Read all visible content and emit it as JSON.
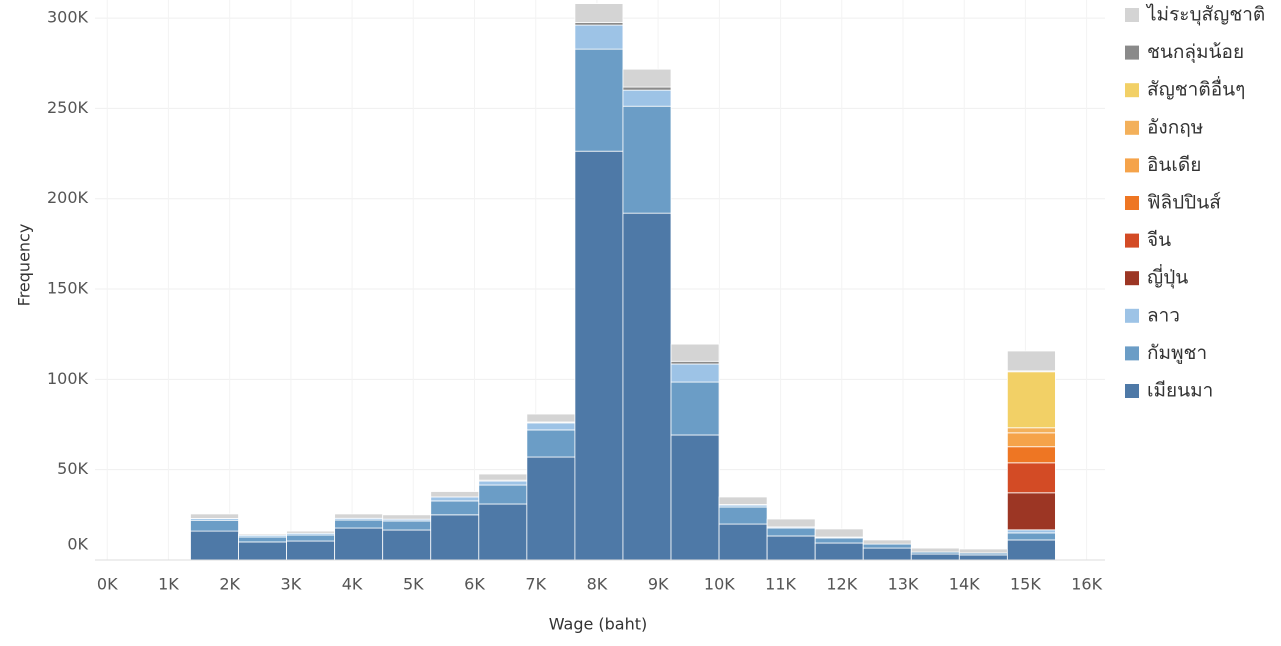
{
  "chart_data": {
    "type": "histogram",
    "xlabel": "Wage (baht)",
    "ylabel": "Frequency",
    "bins": [
      1360,
      2145,
      2930,
      3715,
      4500,
      5285,
      6070,
      6855,
      7640,
      8425,
      9210,
      9995,
      10780,
      11565,
      12350,
      13135,
      13920,
      14705,
      15490
    ],
    "xlim": [
      -200,
      16300
    ],
    "xticks": [
      {
        "value": 0,
        "label": "0K"
      },
      {
        "value": 1000,
        "label": "1K"
      },
      {
        "value": 2000,
        "label": "2K"
      },
      {
        "value": 3000,
        "label": "3K"
      },
      {
        "value": 4000,
        "label": "4K"
      },
      {
        "value": 5000,
        "label": "5K"
      },
      {
        "value": 6000,
        "label": "6K"
      },
      {
        "value": 7000,
        "label": "7K"
      },
      {
        "value": 8000,
        "label": "8K"
      },
      {
        "value": 9000,
        "label": "9K"
      },
      {
        "value": 10000,
        "label": "10K"
      },
      {
        "value": 11000,
        "label": "11K"
      },
      {
        "value": 12000,
        "label": "12K"
      },
      {
        "value": 13000,
        "label": "13K"
      },
      {
        "value": 14000,
        "label": "14K"
      },
      {
        "value": 15000,
        "label": "15K"
      },
      {
        "value": 16000,
        "label": "16K"
      }
    ],
    "ylim": [
      0,
      310000
    ],
    "yticks": [
      {
        "value": 0,
        "label": "0K"
      },
      {
        "value": 50000,
        "label": "50K"
      },
      {
        "value": 100000,
        "label": "100K"
      },
      {
        "value": 150000,
        "label": "150K"
      },
      {
        "value": 200000,
        "label": "200K"
      },
      {
        "value": 250000,
        "label": "250K"
      },
      {
        "value": 300000,
        "label": "300K"
      }
    ],
    "grid": true,
    "stacked": true,
    "legend": "right",
    "series": [
      {
        "name": "ไม่ระบุสัญชาติ",
        "color": "#d4d4d4",
        "values": [
          2500,
          700,
          1200,
          2400,
          2400,
          3000,
          3400,
          4400,
          10400,
          9900,
          9500,
          4200,
          4400,
          4500,
          2300,
          2200,
          2200,
          11000
        ]
      },
      {
        "name": "ชนกลุ่มน้อย",
        "color": "#8a8a8a",
        "values": [
          0,
          0,
          0,
          0,
          0,
          0,
          500,
          500,
          1500,
          1700,
          1500,
          300,
          0,
          0,
          0,
          0,
          0,
          500
        ]
      },
      {
        "name": "สัญชาติอื่นๆ",
        "color": "#f2d066",
        "values": [
          0,
          0,
          0,
          0,
          0,
          0,
          0,
          0,
          0,
          0,
          0,
          0,
          0,
          0,
          0,
          0,
          0,
          31000
        ]
      },
      {
        "name": "อังกฤษ",
        "color": "#f3b05a",
        "values": [
          0,
          0,
          0,
          0,
          0,
          0,
          0,
          0,
          0,
          0,
          0,
          0,
          0,
          0,
          0,
          0,
          0,
          2800
        ]
      },
      {
        "name": "อินเดีย",
        "color": "#f5a34a",
        "values": [
          0,
          0,
          0,
          0,
          0,
          0,
          0,
          0,
          0,
          0,
          0,
          0,
          0,
          0,
          0,
          0,
          0,
          7700
        ]
      },
      {
        "name": "ฟิลิปปินส์",
        "color": "#ee7623",
        "values": [
          0,
          0,
          0,
          0,
          0,
          0,
          0,
          0,
          0,
          0,
          0,
          0,
          0,
          0,
          0,
          0,
          0,
          8900
        ]
      },
      {
        "name": "จีน",
        "color": "#d34b25",
        "values": [
          0,
          0,
          0,
          0,
          0,
          0,
          0,
          0,
          0,
          0,
          0,
          0,
          0,
          0,
          0,
          0,
          0,
          16600
        ]
      },
      {
        "name": "ญี่ปุ่น",
        "color": "#9c3624",
        "values": [
          0,
          0,
          0,
          0,
          0,
          0,
          0,
          0,
          0,
          0,
          0,
          0,
          0,
          0,
          0,
          0,
          0,
          20500
        ]
      },
      {
        "name": "ลาว",
        "color": "#9dc3e6",
        "values": [
          1000,
          1000,
          1000,
          1000,
          1000,
          2200,
          2200,
          3900,
          13300,
          8900,
          10000,
          1100,
          600,
          500,
          0,
          0,
          0,
          1700
        ]
      },
      {
        "name": "กัมพูชา",
        "color": "#6b9dc6",
        "values": [
          6000,
          2700,
          3300,
          4400,
          5000,
          7700,
          10500,
          15000,
          56500,
          59200,
          29300,
          9400,
          4400,
          2800,
          2200,
          1100,
          1100,
          3900
        ]
      },
      {
        "name": "เมียนมา",
        "color": "#4e79a7",
        "values": [
          16000,
          10000,
          10500,
          17700,
          16600,
          25000,
          31000,
          57000,
          226300,
          192000,
          69200,
          19900,
          13300,
          9400,
          6600,
          3300,
          2800,
          11100
        ]
      }
    ]
  }
}
